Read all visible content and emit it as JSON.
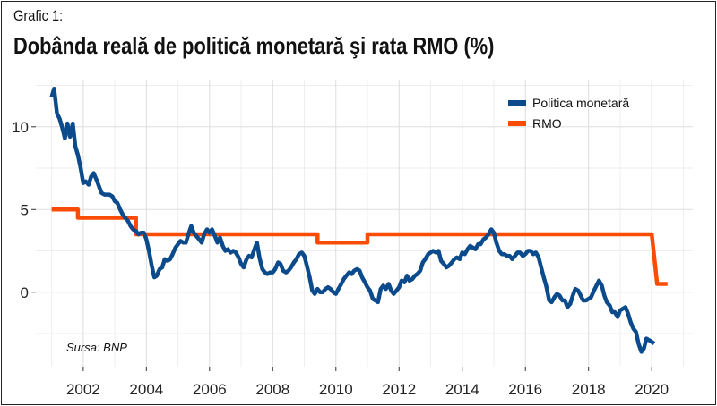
{
  "header": {
    "subtitle": "Grafic 1:",
    "title": "Dobânda reală de politică monetară şi rata RMO (%)"
  },
  "source": "Sursa: BNP",
  "chart_data": {
    "type": "line",
    "xlim": [
      2000.5,
      2021.3
    ],
    "ylim": [
      -4.5,
      12.8
    ],
    "x_ticks": [
      2002,
      2004,
      2006,
      2008,
      2010,
      2012,
      2014,
      2016,
      2018,
      2020
    ],
    "y_ticks": [
      0,
      5,
      10
    ],
    "grid": true,
    "legend_position": "top-right",
    "series": [
      {
        "name": "Politica monetară",
        "color": "#0b4a8b",
        "points": [
          [
            2001.0,
            11.8
          ],
          [
            2001.08,
            12.3
          ],
          [
            2001.17,
            10.8
          ],
          [
            2001.25,
            10.5
          ],
          [
            2001.33,
            10.0
          ],
          [
            2001.42,
            9.3
          ],
          [
            2001.5,
            10.2
          ],
          [
            2001.58,
            9.4
          ],
          [
            2001.67,
            10.2
          ],
          [
            2001.75,
            8.8
          ],
          [
            2001.83,
            8.3
          ],
          [
            2001.92,
            7.5
          ],
          [
            2002.0,
            6.6
          ],
          [
            2002.08,
            6.7
          ],
          [
            2002.17,
            6.5
          ],
          [
            2002.25,
            7.0
          ],
          [
            2002.33,
            7.2
          ],
          [
            2002.42,
            6.8
          ],
          [
            2002.5,
            6.4
          ],
          [
            2002.58,
            6.0
          ],
          [
            2002.67,
            5.9
          ],
          [
            2002.75,
            5.9
          ],
          [
            2002.83,
            5.9
          ],
          [
            2002.92,
            5.8
          ],
          [
            2003.0,
            5.5
          ],
          [
            2003.08,
            5.4
          ],
          [
            2003.17,
            5.0
          ],
          [
            2003.25,
            4.7
          ],
          [
            2003.33,
            4.5
          ],
          [
            2003.42,
            4.3
          ],
          [
            2003.5,
            4.0
          ],
          [
            2003.58,
            3.8
          ],
          [
            2003.67,
            3.7
          ],
          [
            2003.75,
            3.5
          ],
          [
            2003.83,
            3.6
          ],
          [
            2003.92,
            3.6
          ],
          [
            2004.0,
            3.2
          ],
          [
            2004.08,
            2.5
          ],
          [
            2004.17,
            1.6
          ],
          [
            2004.25,
            0.9
          ],
          [
            2004.33,
            1.0
          ],
          [
            2004.42,
            1.4
          ],
          [
            2004.5,
            1.5
          ],
          [
            2004.58,
            2.0
          ],
          [
            2004.67,
            1.9
          ],
          [
            2004.75,
            2.0
          ],
          [
            2004.83,
            2.3
          ],
          [
            2004.92,
            2.7
          ],
          [
            2005.0,
            2.9
          ],
          [
            2005.08,
            3.1
          ],
          [
            2005.17,
            3.0
          ],
          [
            2005.25,
            3.0
          ],
          [
            2005.33,
            3.5
          ],
          [
            2005.42,
            4.0
          ],
          [
            2005.5,
            3.6
          ],
          [
            2005.58,
            3.4
          ],
          [
            2005.67,
            3.2
          ],
          [
            2005.75,
            3.0
          ],
          [
            2005.83,
            3.5
          ],
          [
            2005.92,
            3.8
          ],
          [
            2006.0,
            3.6
          ],
          [
            2006.08,
            3.8
          ],
          [
            2006.17,
            3.4
          ],
          [
            2006.25,
            3.0
          ],
          [
            2006.33,
            3.3
          ],
          [
            2006.42,
            2.8
          ],
          [
            2006.5,
            2.5
          ],
          [
            2006.58,
            2.6
          ],
          [
            2006.67,
            2.4
          ],
          [
            2006.75,
            2.5
          ],
          [
            2006.83,
            2.4
          ],
          [
            2006.92,
            2.1
          ],
          [
            2007.0,
            1.7
          ],
          [
            2007.08,
            1.5
          ],
          [
            2007.17,
            2.0
          ],
          [
            2007.25,
            2.2
          ],
          [
            2007.33,
            2.1
          ],
          [
            2007.42,
            2.6
          ],
          [
            2007.5,
            3.0
          ],
          [
            2007.58,
            2.1
          ],
          [
            2007.67,
            1.4
          ],
          [
            2007.75,
            1.2
          ],
          [
            2007.83,
            1.1
          ],
          [
            2007.92,
            1.2
          ],
          [
            2008.0,
            1.2
          ],
          [
            2008.08,
            1.4
          ],
          [
            2008.17,
            1.8
          ],
          [
            2008.25,
            1.7
          ],
          [
            2008.33,
            1.3
          ],
          [
            2008.42,
            1.2
          ],
          [
            2008.5,
            1.3
          ],
          [
            2008.58,
            1.5
          ],
          [
            2008.67,
            1.8
          ],
          [
            2008.75,
            2.0
          ],
          [
            2008.83,
            2.3
          ],
          [
            2008.92,
            2.4
          ],
          [
            2009.0,
            2.2
          ],
          [
            2009.08,
            1.6
          ],
          [
            2009.17,
            0.9
          ],
          [
            2009.25,
            0.1
          ],
          [
            2009.33,
            -0.1
          ],
          [
            2009.42,
            0.2
          ],
          [
            2009.5,
            0.0
          ],
          [
            2009.58,
            0.0
          ],
          [
            2009.67,
            0.2
          ],
          [
            2009.75,
            0.3
          ],
          [
            2009.83,
            0.2
          ],
          [
            2009.92,
            0.0
          ],
          [
            2010.0,
            -0.1
          ],
          [
            2010.08,
            0.2
          ],
          [
            2010.17,
            0.5
          ],
          [
            2010.25,
            0.8
          ],
          [
            2010.33,
            1.0
          ],
          [
            2010.42,
            1.2
          ],
          [
            2010.5,
            1.1
          ],
          [
            2010.58,
            1.3
          ],
          [
            2010.67,
            1.4
          ],
          [
            2010.75,
            1.3
          ],
          [
            2010.83,
            0.9
          ],
          [
            2010.92,
            0.6
          ],
          [
            2011.0,
            0.3
          ],
          [
            2011.08,
            0.1
          ],
          [
            2011.17,
            -0.4
          ],
          [
            2011.25,
            -0.5
          ],
          [
            2011.33,
            -0.6
          ],
          [
            2011.42,
            0.2
          ],
          [
            2011.5,
            0.4
          ],
          [
            2011.58,
            0.2
          ],
          [
            2011.67,
            0.5
          ],
          [
            2011.75,
            0.1
          ],
          [
            2011.83,
            -0.1
          ],
          [
            2011.92,
            0.1
          ],
          [
            2012.0,
            0.3
          ],
          [
            2012.08,
            0.7
          ],
          [
            2012.17,
            0.6
          ],
          [
            2012.25,
            1.0
          ],
          [
            2012.33,
            0.7
          ],
          [
            2012.42,
            0.8
          ],
          [
            2012.5,
            1.0
          ],
          [
            2012.58,
            1.1
          ],
          [
            2012.67,
            1.3
          ],
          [
            2012.75,
            1.8
          ],
          [
            2012.83,
            2.0
          ],
          [
            2012.92,
            2.3
          ],
          [
            2013.0,
            2.4
          ],
          [
            2013.08,
            2.5
          ],
          [
            2013.17,
            2.4
          ],
          [
            2013.25,
            2.5
          ],
          [
            2013.33,
            1.9
          ],
          [
            2013.42,
            1.7
          ],
          [
            2013.5,
            1.5
          ],
          [
            2013.58,
            1.6
          ],
          [
            2013.67,
            1.8
          ],
          [
            2013.75,
            2.0
          ],
          [
            2013.83,
            2.1
          ],
          [
            2013.92,
            2.0
          ],
          [
            2014.0,
            2.4
          ],
          [
            2014.08,
            2.3
          ],
          [
            2014.17,
            2.6
          ],
          [
            2014.25,
            2.8
          ],
          [
            2014.33,
            2.7
          ],
          [
            2014.42,
            2.6
          ],
          [
            2014.5,
            2.9
          ],
          [
            2014.58,
            2.9
          ],
          [
            2014.67,
            3.2
          ],
          [
            2014.75,
            3.3
          ],
          [
            2014.83,
            3.5
          ],
          [
            2014.92,
            3.8
          ],
          [
            2015.0,
            3.6
          ],
          [
            2015.08,
            3.0
          ],
          [
            2015.17,
            2.5
          ],
          [
            2015.25,
            2.3
          ],
          [
            2015.33,
            2.3
          ],
          [
            2015.42,
            2.2
          ],
          [
            2015.5,
            2.2
          ],
          [
            2015.58,
            2.0
          ],
          [
            2015.67,
            2.2
          ],
          [
            2015.75,
            2.4
          ],
          [
            2015.83,
            2.4
          ],
          [
            2015.92,
            2.2
          ],
          [
            2016.0,
            2.3
          ],
          [
            2016.08,
            2.5
          ],
          [
            2016.17,
            2.5
          ],
          [
            2016.25,
            2.3
          ],
          [
            2016.33,
            2.4
          ],
          [
            2016.42,
            2.1
          ],
          [
            2016.5,
            1.5
          ],
          [
            2016.58,
            0.9
          ],
          [
            2016.67,
            0.3
          ],
          [
            2016.75,
            -0.5
          ],
          [
            2016.83,
            -0.6
          ],
          [
            2016.92,
            -0.3
          ],
          [
            2017.0,
            -0.1
          ],
          [
            2017.08,
            -0.2
          ],
          [
            2017.17,
            -0.5
          ],
          [
            2017.25,
            -0.5
          ],
          [
            2017.33,
            -0.9
          ],
          [
            2017.42,
            -0.7
          ],
          [
            2017.5,
            -0.2
          ],
          [
            2017.58,
            0.2
          ],
          [
            2017.67,
            0.1
          ],
          [
            2017.75,
            -0.2
          ],
          [
            2017.83,
            -0.5
          ],
          [
            2017.92,
            -0.5
          ],
          [
            2018.0,
            -0.4
          ],
          [
            2018.08,
            -0.3
          ],
          [
            2018.17,
            0.1
          ],
          [
            2018.25,
            0.4
          ],
          [
            2018.33,
            0.7
          ],
          [
            2018.42,
            0.4
          ],
          [
            2018.5,
            -0.2
          ],
          [
            2018.58,
            -0.6
          ],
          [
            2018.67,
            -0.8
          ],
          [
            2018.75,
            -1.2
          ],
          [
            2018.83,
            -1.2
          ],
          [
            2018.92,
            -1.5
          ],
          [
            2019.0,
            -1.1
          ],
          [
            2019.08,
            -1.0
          ],
          [
            2019.17,
            -0.9
          ],
          [
            2019.25,
            -1.3
          ],
          [
            2019.33,
            -1.8
          ],
          [
            2019.42,
            -2.2
          ],
          [
            2019.5,
            -2.4
          ],
          [
            2019.58,
            -3.1
          ],
          [
            2019.67,
            -3.6
          ],
          [
            2019.75,
            -3.4
          ],
          [
            2019.83,
            -2.8
          ],
          [
            2019.92,
            -2.9
          ],
          [
            2020.0,
            -3.0
          ],
          [
            2020.08,
            -3.1
          ]
        ]
      },
      {
        "name": "RMO",
        "color": "#fb4c05",
        "points": [
          [
            2001.0,
            5.0
          ],
          [
            2001.83,
            5.0
          ],
          [
            2001.83,
            4.5
          ],
          [
            2003.67,
            4.5
          ],
          [
            2003.67,
            3.5
          ],
          [
            2009.42,
            3.5
          ],
          [
            2009.42,
            3.0
          ],
          [
            2011.0,
            3.0
          ],
          [
            2011.0,
            3.5
          ],
          [
            2020.0,
            3.5
          ],
          [
            2020.17,
            0.5
          ],
          [
            2020.5,
            0.5
          ]
        ]
      }
    ]
  }
}
